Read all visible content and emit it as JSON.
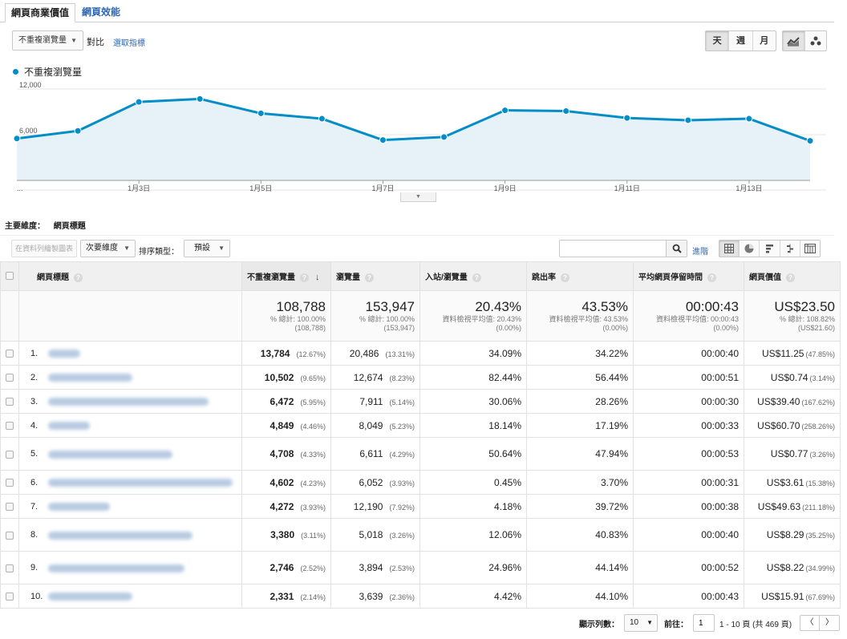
{
  "tabs": [
    {
      "label": "網頁商業價值",
      "active": true
    },
    {
      "label": "網頁效能",
      "active": false
    }
  ],
  "toolbar": {
    "metric_select": "不重複瀏覽量",
    "compare_label": "對比",
    "pick_metric": "選取指標",
    "periods": [
      "天",
      "週",
      "月"
    ],
    "active_period": "天",
    "chart_types": [
      "line-chart-icon",
      "motion-chart-icon"
    ]
  },
  "legend": {
    "label": "不重複瀏覽量",
    "color": "#058dc7"
  },
  "chart_data": {
    "type": "area",
    "series": [
      {
        "name": "不重複瀏覽量",
        "color": "#058dc7",
        "values": [
          5500,
          6500,
          10300,
          10700,
          8800,
          8100,
          5300,
          5700,
          9200,
          9100,
          8200,
          7900,
          8100,
          5200
        ]
      }
    ],
    "x_tick_labels": [
      "...",
      "1月3日",
      "1月5日",
      "1月7日",
      "1月9日",
      "1月11日",
      "1月13日"
    ],
    "y_tick_labels": [
      "12,000",
      "6,000"
    ],
    "ylim": [
      0,
      12000
    ],
    "grid": true
  },
  "primary_dimension": {
    "label": "主要維度：",
    "value": "網頁標題"
  },
  "controls": {
    "plot_rows": "在資料列繪製圖表",
    "secondary_dimension": "次要維度",
    "sort_label": "排序類型：",
    "sort_value": "預設",
    "search_placeholder": "",
    "advanced": "進階"
  },
  "table": {
    "headers": {
      "title": "網頁標題",
      "unique_views": "不重複瀏覽量",
      "views": "瀏覽量",
      "entrances": "入站/瀏覽量",
      "bounce": "跳出率",
      "avg_time": "平均網頁停留時間",
      "value": "網頁價值"
    },
    "totals": {
      "unique_views": {
        "value": "108,788",
        "line1": "% 總計: 100.00%",
        "line2": "(108,788)"
      },
      "views": {
        "value": "153,947",
        "line1": "% 總計: 100.00%",
        "line2": "(153,947)"
      },
      "entrances": {
        "value": "20.43%",
        "line1": "資料檢視平均值: 20.43%",
        "line2": "(0.00%)"
      },
      "bounce": {
        "value": "43.53%",
        "line1": "資料檢視平均值: 43.53%",
        "line2": "(0.00%)"
      },
      "avg_time": {
        "value": "00:00:43",
        "line1": "資料檢視平均值: 00:00:43",
        "line2": "(0.00%)"
      },
      "value": {
        "value": "US$23.50",
        "line1": "% 總計: 108.82%",
        "line2": "(US$21.60)"
      }
    },
    "rows": [
      {
        "idx": "1.",
        "uv": "13,784",
        "uv_pct": "(12.67%)",
        "v": "20,486",
        "v_pct": "(13.31%)",
        "ent": "34.09%",
        "bounce": "34.22%",
        "time": "00:00:40",
        "val": "US$11.25",
        "val_pct": "(47.85%)"
      },
      {
        "idx": "2.",
        "uv": "10,502",
        "uv_pct": "(9.65%)",
        "v": "12,674",
        "v_pct": "(8.23%)",
        "ent": "82.44%",
        "bounce": "56.44%",
        "time": "00:00:51",
        "val": "US$0.74",
        "val_pct": "(3.14%)"
      },
      {
        "idx": "3.",
        "uv": "6,472",
        "uv_pct": "(5.95%)",
        "v": "7,911",
        "v_pct": "(5.14%)",
        "ent": "30.06%",
        "bounce": "28.26%",
        "time": "00:00:30",
        "val": "US$39.40",
        "val_pct": "(167.62%)"
      },
      {
        "idx": "4.",
        "uv": "4,849",
        "uv_pct": "(4.46%)",
        "v": "8,049",
        "v_pct": "(5.23%)",
        "ent": "18.14%",
        "bounce": "17.19%",
        "time": "00:00:33",
        "val": "US$60.70",
        "val_pct": "(258.26%)"
      },
      {
        "idx": "5.",
        "uv": "4,708",
        "uv_pct": "(4.33%)",
        "v": "6,611",
        "v_pct": "(4.29%)",
        "ent": "50.64%",
        "bounce": "47.94%",
        "time": "00:00:53",
        "val": "US$0.77",
        "val_pct": "(3.26%)"
      },
      {
        "idx": "6.",
        "uv": "4,602",
        "uv_pct": "(4.23%)",
        "v": "6,052",
        "v_pct": "(3.93%)",
        "ent": "0.45%",
        "bounce": "3.70%",
        "time": "00:00:31",
        "val": "US$3.61",
        "val_pct": "(15.38%)"
      },
      {
        "idx": "7.",
        "uv": "4,272",
        "uv_pct": "(3.93%)",
        "v": "12,190",
        "v_pct": "(7.92%)",
        "ent": "4.18%",
        "bounce": "39.72%",
        "time": "00:00:38",
        "val": "US$49.63",
        "val_pct": "(211.18%)"
      },
      {
        "idx": "8.",
        "uv": "3,380",
        "uv_pct": "(3.11%)",
        "v": "5,018",
        "v_pct": "(3.26%)",
        "ent": "12.06%",
        "bounce": "40.83%",
        "time": "00:00:40",
        "val": "US$8.29",
        "val_pct": "(35.25%)"
      },
      {
        "idx": "9.",
        "uv": "2,746",
        "uv_pct": "(2.52%)",
        "v": "3,894",
        "v_pct": "(2.53%)",
        "ent": "24.96%",
        "bounce": "44.14%",
        "time": "00:00:52",
        "val": "US$8.22",
        "val_pct": "(34.99%)"
      },
      {
        "idx": "10.",
        "uv": "2,331",
        "uv_pct": "(2.14%)",
        "v": "3,639",
        "v_pct": "(2.36%)",
        "ent": "4.42%",
        "bounce": "44.10%",
        "time": "00:00:43",
        "val": "US$15.91",
        "val_pct": "(67.69%)"
      }
    ]
  },
  "pager": {
    "rows_label": "顯示列數：",
    "rows_value": "10",
    "goto_label": "前往：",
    "goto_value": "1",
    "range": "1 - 10 頁 (共 469 頁)",
    "prev": "〈",
    "next": "〉"
  }
}
